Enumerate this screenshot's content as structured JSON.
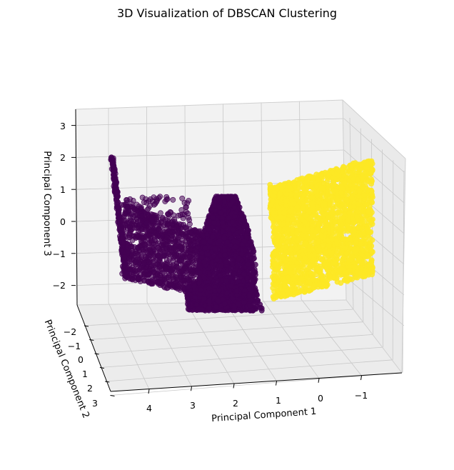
{
  "chart_data": {
    "type": "scatter",
    "projection": "3d",
    "title": "3D Visualization of DBSCAN Clustering",
    "xlabel": "Principal Component 1",
    "ylabel": "Principal Component 2",
    "zlabel": "Principal Component 3",
    "x_ticks": [
      "4",
      "3",
      "2",
      "1",
      "0",
      "−1"
    ],
    "y_ticks": [
      "−2",
      "−1",
      "0",
      "1",
      "2",
      "3"
    ],
    "z_ticks": [
      "3",
      "2",
      "1",
      "0",
      "−1",
      "−2"
    ],
    "grid": true,
    "colors": {
      "cluster_0": "#440154",
      "cluster_1": "#fde725",
      "grid": "#c8c8c8",
      "pane": "#f2f2f2"
    },
    "clusters": [
      {
        "label": 0,
        "color": "#440154",
        "regions": [
          {
            "shape": "thin-band",
            "x_range": [
              3.5,
              4.5
            ],
            "z_range": [
              -2.0,
              2.1
            ]
          },
          {
            "shape": "fan",
            "x_range": [
              2.0,
              4.0
            ],
            "z_range": [
              -2.3,
              -0.2
            ]
          },
          {
            "shape": "dense-ellipse",
            "x_center": 1.8,
            "z_range": [
              -2.6,
              0.9
            ]
          }
        ]
      },
      {
        "label": 1,
        "color": "#fde725",
        "regions": [
          {
            "shape": "block",
            "x_range": [
              -1.2,
              0.2
            ],
            "z_range": [
              -2.5,
              1.6
            ]
          }
        ]
      }
    ]
  }
}
